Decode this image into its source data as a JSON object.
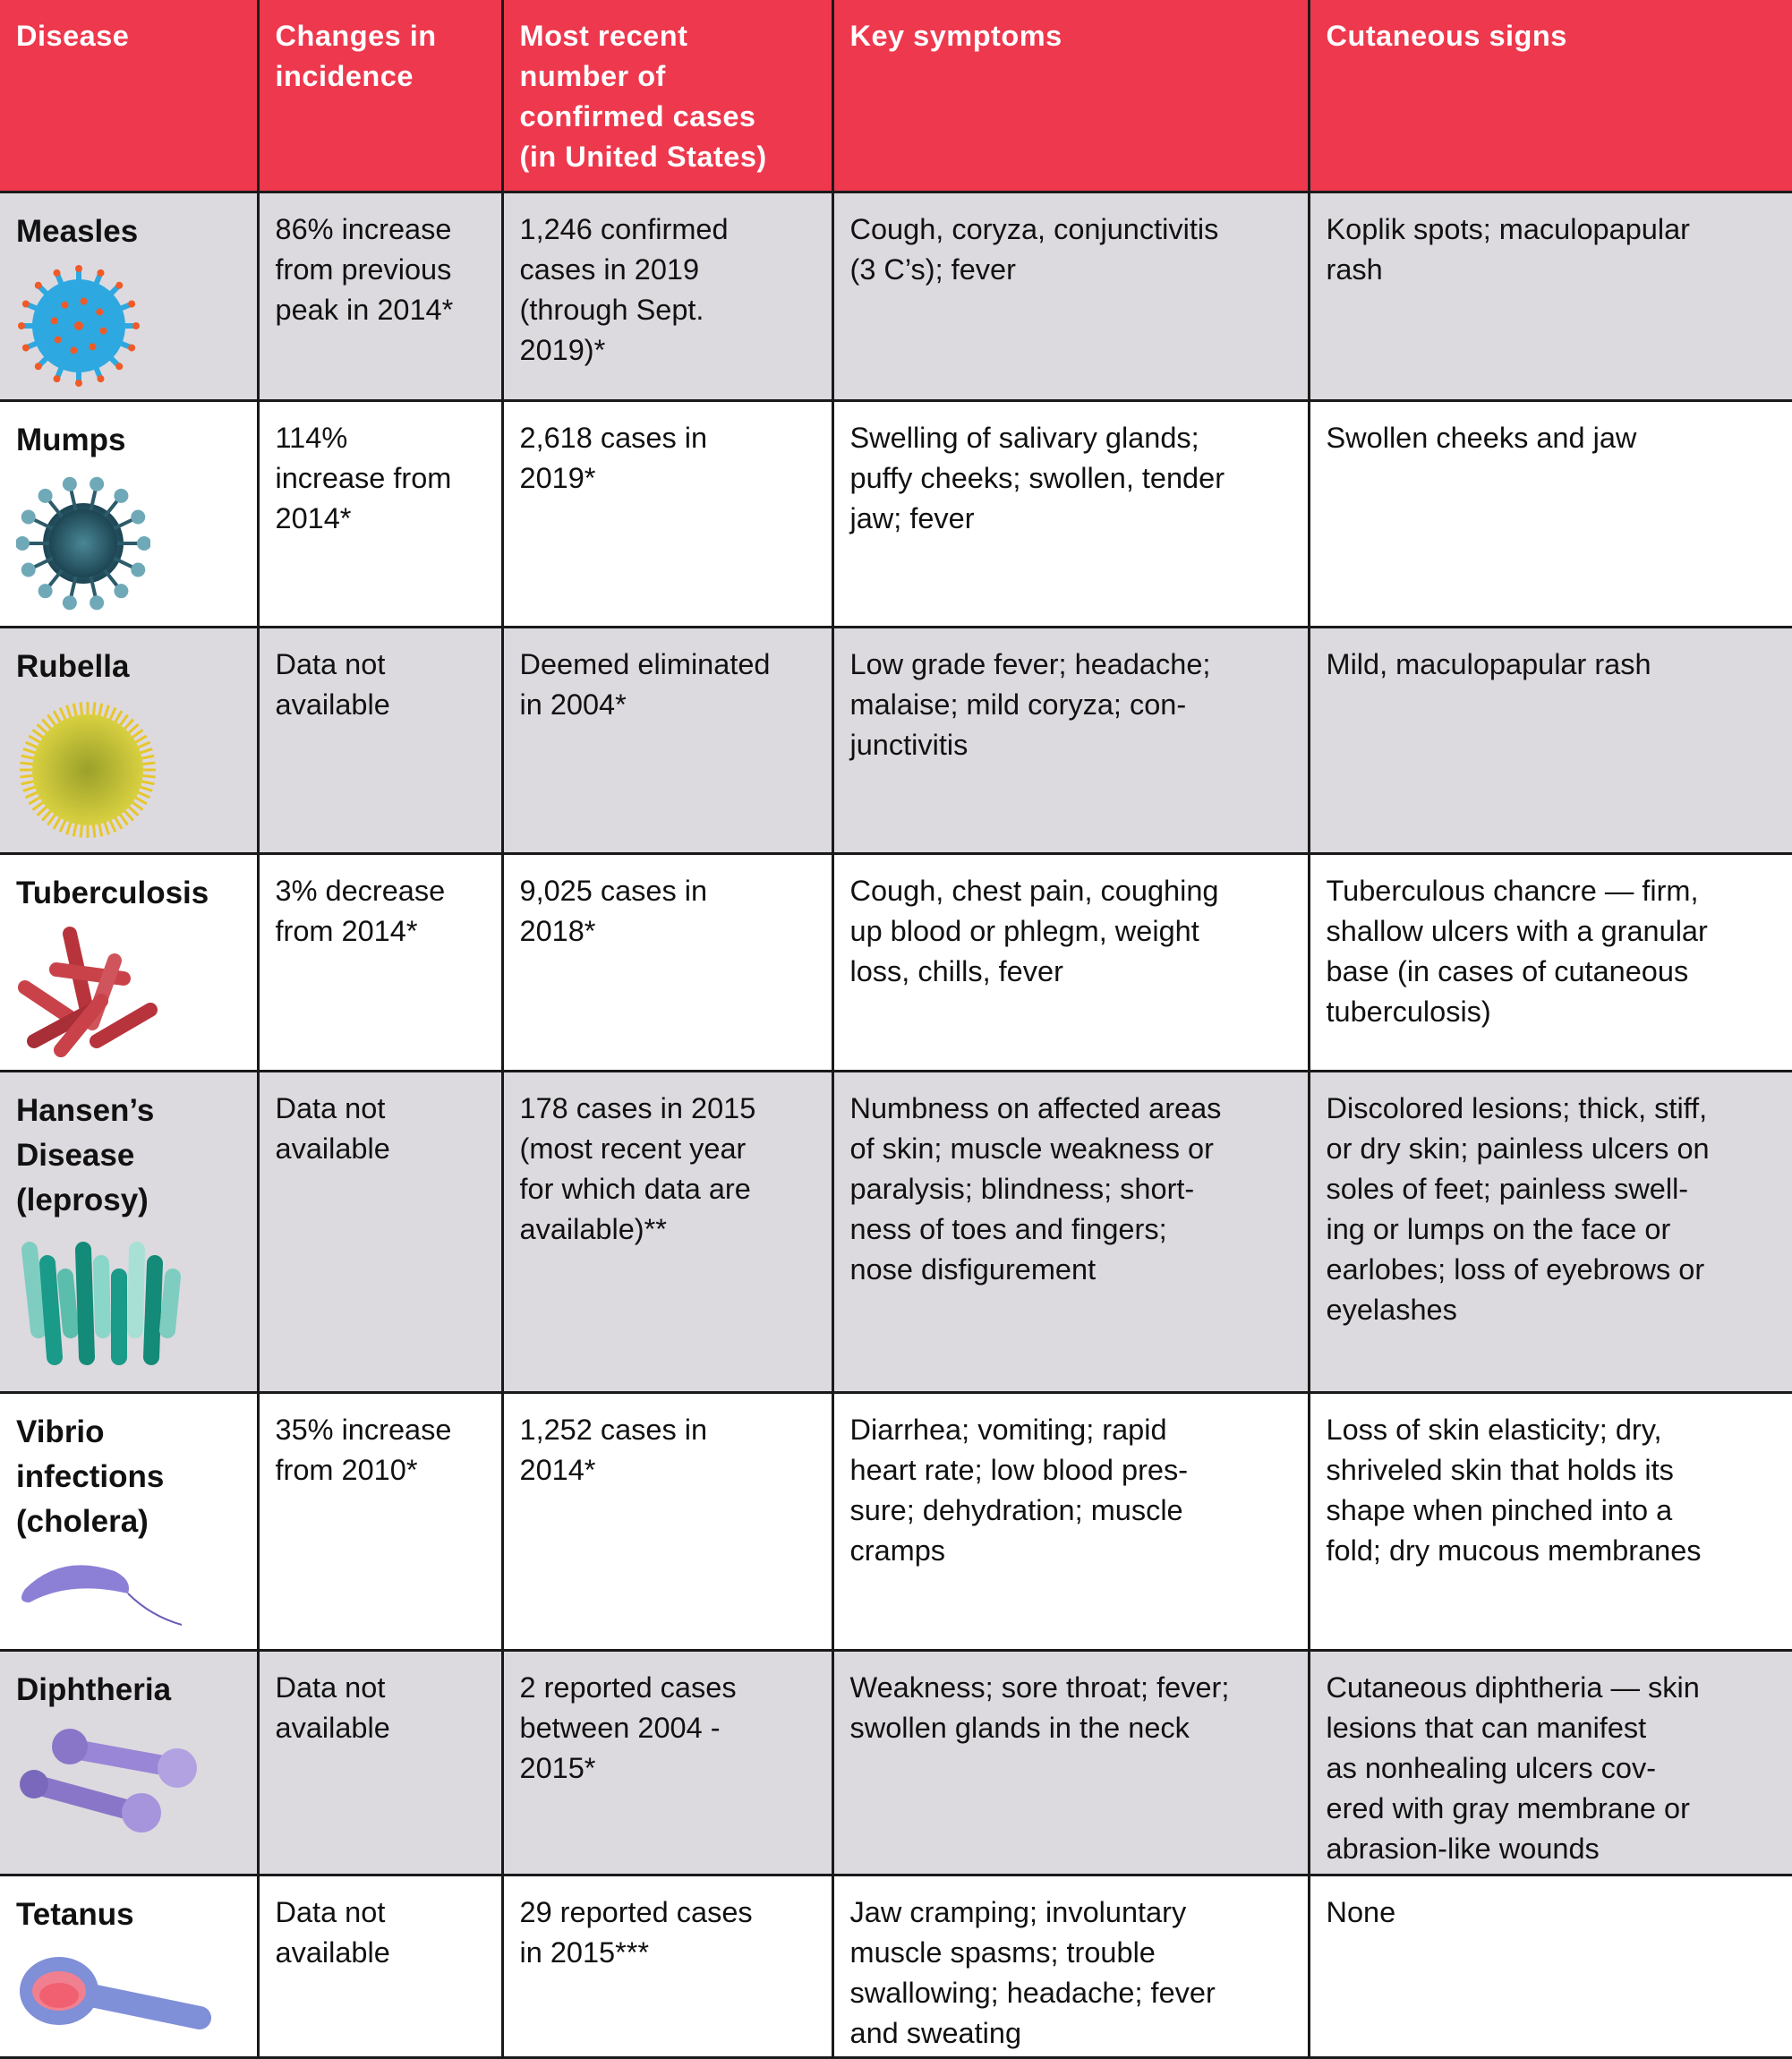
{
  "headers": [
    "Disease",
    "Changes in\nincidence",
    "Most recent\nnumber of\nconfirmed cases\n(in United States)",
    "Key symptoms",
    "Cutaneous signs"
  ],
  "colors": {
    "header": "#ee384e",
    "grey_row": "#dcdadf",
    "white_row": "#ffffff"
  },
  "rows": [
    {
      "disease": "Measles",
      "icon": "measles-virus-icon",
      "change": "86% increase\nfrom previous\npeak in 2014*",
      "cases": "1,246 confirmed\ncases in 2019\n(through Sept.\n2019)*",
      "symptoms": "Cough, coryza, conjunctivitis\n(3 C’s); fever",
      "signs": "Koplik spots; maculopapular\nrash"
    },
    {
      "disease": "Mumps",
      "icon": "mumps-virus-icon",
      "change": "114%\nincrease from\n2014*",
      "cases": "2,618 cases in\n2019*",
      "symptoms": "Swelling of salivary glands;\npuffy cheeks; swollen, tender\njaw; fever",
      "signs": "Swollen cheeks and jaw"
    },
    {
      "disease": "Rubella",
      "icon": "rubella-virus-icon",
      "change": "Data not\navailable",
      "cases": "Deemed eliminated\nin 2004*",
      "symptoms": "Low grade fever; headache;\nmalaise; mild coryza; con-\njunctivitis",
      "signs": "Mild, maculopapular rash"
    },
    {
      "disease": "Tuberculosis",
      "icon": "tuberculosis-bacteria-icon",
      "change": "3% decrease\nfrom 2014*",
      "cases": "9,025 cases in\n2018*",
      "symptoms": "Cough, chest pain, coughing\nup blood or phlegm, weight\nloss, chills, fever",
      "signs": "Tuberculous chancre — firm,\nshallow ulcers with a granular\nbase (in cases of cutaneous\ntuberculosis)"
    },
    {
      "disease": "Hansen’s\nDisease\n(leprosy)",
      "icon": "leprosy-bacteria-icon",
      "change": "Data not\navailable",
      "cases": "178 cases in 2015\n(most recent year\nfor which data are\navailable)**",
      "symptoms": "Numbness on affected areas\nof skin; muscle weakness or\nparalysis; blindness; short-\nness of toes and fingers;\nnose disfigurement",
      "signs": "Discolored lesions; thick, stiff,\nor dry skin; painless ulcers on\nsoles of feet; painless swell-\ning or lumps on the face or\nearlobes; loss of eyebrows or\neyelashes"
    },
    {
      "disease": "Vibrio\ninfections\n(cholera)",
      "icon": "vibrio-bacteria-icon",
      "change": "35% increase\nfrom 2010*",
      "cases": "1,252 cases in\n2014*",
      "symptoms": "Diarrhea; vomiting; rapid\nheart rate; low blood pres-\nsure; dehydration; muscle\ncramps",
      "signs": "Loss of skin elasticity; dry,\nshriveled skin that holds its\nshape when pinched into a\nfold; dry mucous membranes"
    },
    {
      "disease": "Diphtheria",
      "icon": "diphtheria-bacteria-icon",
      "change": "Data not\navailable",
      "cases": "2 reported cases\nbetween 2004 -\n2015*",
      "symptoms": "Weakness; sore throat; fever;\nswollen glands in the neck",
      "signs": "Cutaneous diphtheria — skin\nlesions that can manifest\nas nonhealing ulcers cov-\nered with gray membrane or\nabrasion-like wounds"
    },
    {
      "disease": "Tetanus",
      "icon": "tetanus-bacteria-icon",
      "change": "Data not\navailable",
      "cases": "29 reported cases\nin 2015***",
      "symptoms": "Jaw cramping; involuntary\nmuscle spasms; trouble\nswallowing; headache; fever\nand sweating",
      "signs": "None"
    }
  ]
}
